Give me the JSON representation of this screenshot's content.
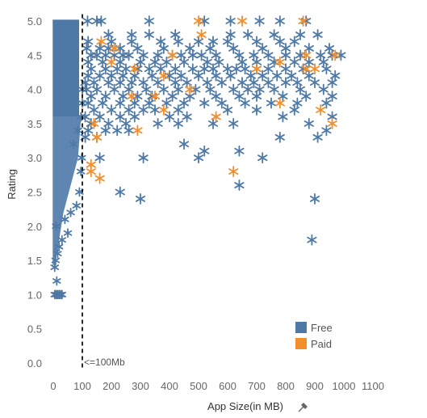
{
  "chart_data": {
    "type": "scatter",
    "xlabel": "App Size(in MB)",
    "ylabel": "Rating",
    "xlim": [
      -10,
      1150
    ],
    "ylim": [
      -0.1,
      5.1
    ],
    "xticks": [
      "0",
      "100",
      "200",
      "300",
      "400",
      "500",
      "600",
      "700",
      "800",
      "900",
      "1000",
      "1100"
    ],
    "yticks": [
      "0.0",
      "0.5",
      "1.0",
      "1.5",
      "2.0",
      "2.5",
      "3.0",
      "3.5",
      "4.0",
      "4.5",
      "5.0"
    ],
    "grid": false,
    "legend_position": "bottom-right",
    "reference_line": {
      "x": 100,
      "label": "<=100Mb"
    },
    "series": [
      {
        "name": "Free",
        "color": "#4e79a7",
        "marker": "asterisk",
        "points": [
          [
            118,
            5.0
          ],
          [
            150,
            5.0
          ],
          [
            165,
            5.0
          ],
          [
            330,
            5.0
          ],
          [
            520,
            5.0
          ],
          [
            610,
            5.0
          ],
          [
            710,
            5.0
          ],
          [
            780,
            5.0
          ],
          [
            870,
            5.0
          ],
          [
            190,
            4.8
          ],
          [
            270,
            4.8
          ],
          [
            330,
            4.8
          ],
          [
            420,
            4.8
          ],
          [
            610,
            4.8
          ],
          [
            670,
            4.8
          ],
          [
            760,
            4.8
          ],
          [
            850,
            4.8
          ],
          [
            910,
            4.8
          ],
          [
            120,
            4.7
          ],
          [
            200,
            4.7
          ],
          [
            270,
            4.7
          ],
          [
            370,
            4.7
          ],
          [
            430,
            4.7
          ],
          [
            500,
            4.7
          ],
          [
            550,
            4.7
          ],
          [
            600,
            4.7
          ],
          [
            700,
            4.7
          ],
          [
            780,
            4.7
          ],
          [
            830,
            4.7
          ],
          [
            115,
            4.6
          ],
          [
            160,
            4.6
          ],
          [
            190,
            4.6
          ],
          [
            230,
            4.6
          ],
          [
            290,
            4.6
          ],
          [
            380,
            4.6
          ],
          [
            470,
            4.6
          ],
          [
            540,
            4.6
          ],
          [
            620,
            4.6
          ],
          [
            720,
            4.6
          ],
          [
            800,
            4.6
          ],
          [
            880,
            4.6
          ],
          [
            950,
            4.6
          ],
          [
            130,
            4.5
          ],
          [
            150,
            4.5
          ],
          [
            180,
            4.5
          ],
          [
            210,
            4.5
          ],
          [
            240,
            4.5
          ],
          [
            260,
            4.5
          ],
          [
            310,
            4.5
          ],
          [
            360,
            4.5
          ],
          [
            410,
            4.5
          ],
          [
            440,
            4.5
          ],
          [
            480,
            4.5
          ],
          [
            510,
            4.5
          ],
          [
            560,
            4.5
          ],
          [
            640,
            4.5
          ],
          [
            690,
            4.5
          ],
          [
            740,
            4.5
          ],
          [
            800,
            4.5
          ],
          [
            850,
            4.5
          ],
          [
            920,
            4.5
          ],
          [
            960,
            4.5
          ],
          [
            990,
            4.5
          ],
          [
            120,
            4.4
          ],
          [
            170,
            4.4
          ],
          [
            230,
            4.4
          ],
          [
            300,
            4.4
          ],
          [
            350,
            4.4
          ],
          [
            390,
            4.4
          ],
          [
            450,
            4.4
          ],
          [
            530,
            4.4
          ],
          [
            570,
            4.4
          ],
          [
            650,
            4.4
          ],
          [
            700,
            4.4
          ],
          [
            760,
            4.4
          ],
          [
            830,
            4.4
          ],
          [
            880,
            4.4
          ],
          [
            930,
            4.4
          ],
          [
            130,
            4.3
          ],
          [
            180,
            4.3
          ],
          [
            220,
            4.3
          ],
          [
            250,
            4.3
          ],
          [
            290,
            4.3
          ],
          [
            330,
            4.3
          ],
          [
            370,
            4.3
          ],
          [
            420,
            4.3
          ],
          [
            480,
            4.3
          ],
          [
            520,
            4.3
          ],
          [
            550,
            4.3
          ],
          [
            600,
            4.3
          ],
          [
            630,
            4.3
          ],
          [
            660,
            4.3
          ],
          [
            700,
            4.3
          ],
          [
            740,
            4.3
          ],
          [
            800,
            4.3
          ],
          [
            860,
            4.3
          ],
          [
            940,
            4.3
          ],
          [
            120,
            4.2
          ],
          [
            160,
            4.2
          ],
          [
            200,
            4.2
          ],
          [
            240,
            4.2
          ],
          [
            280,
            4.2
          ],
          [
            340,
            4.2
          ],
          [
            400,
            4.2
          ],
          [
            440,
            4.2
          ],
          [
            500,
            4.2
          ],
          [
            560,
            4.2
          ],
          [
            610,
            4.2
          ],
          [
            680,
            4.2
          ],
          [
            720,
            4.2
          ],
          [
            770,
            4.2
          ],
          [
            820,
            4.2
          ],
          [
            880,
            4.2
          ],
          [
            970,
            4.2
          ],
          [
            110,
            4.1
          ],
          [
            140,
            4.1
          ],
          [
            190,
            4.1
          ],
          [
            230,
            4.1
          ],
          [
            270,
            4.1
          ],
          [
            310,
            4.1
          ],
          [
            360,
            4.1
          ],
          [
            420,
            4.1
          ],
          [
            460,
            4.1
          ],
          [
            530,
            4.1
          ],
          [
            580,
            4.1
          ],
          [
            650,
            4.1
          ],
          [
            690,
            4.1
          ],
          [
            740,
            4.1
          ],
          [
            800,
            4.1
          ],
          [
            840,
            4.1
          ],
          [
            900,
            4.1
          ],
          [
            960,
            4.1
          ],
          [
            115,
            4.0
          ],
          [
            150,
            4.0
          ],
          [
            210,
            4.0
          ],
          [
            260,
            4.0
          ],
          [
            320,
            4.0
          ],
          [
            380,
            4.0
          ],
          [
            430,
            4.0
          ],
          [
            490,
            4.0
          ],
          [
            540,
            4.0
          ],
          [
            620,
            4.0
          ],
          [
            670,
            4.0
          ],
          [
            710,
            4.0
          ],
          [
            760,
            4.0
          ],
          [
            850,
            4.0
          ],
          [
            930,
            4.0
          ],
          [
            130,
            3.9
          ],
          [
            180,
            3.9
          ],
          [
            240,
            3.9
          ],
          [
            290,
            3.9
          ],
          [
            340,
            3.9
          ],
          [
            410,
            3.9
          ],
          [
            470,
            3.9
          ],
          [
            560,
            3.9
          ],
          [
            640,
            3.9
          ],
          [
            700,
            3.9
          ],
          [
            790,
            3.9
          ],
          [
            870,
            3.9
          ],
          [
            960,
            3.9
          ],
          [
            120,
            3.8
          ],
          [
            170,
            3.8
          ],
          [
            230,
            3.8
          ],
          [
            280,
            3.8
          ],
          [
            330,
            3.8
          ],
          [
            390,
            3.8
          ],
          [
            450,
            3.8
          ],
          [
            520,
            3.8
          ],
          [
            580,
            3.8
          ],
          [
            660,
            3.8
          ],
          [
            750,
            3.8
          ],
          [
            840,
            3.8
          ],
          [
            940,
            3.8
          ],
          [
            140,
            3.7
          ],
          [
            200,
            3.7
          ],
          [
            260,
            3.7
          ],
          [
            310,
            3.7
          ],
          [
            350,
            3.7
          ],
          [
            430,
            3.7
          ],
          [
            600,
            3.7
          ],
          [
            700,
            3.7
          ],
          [
            830,
            3.7
          ],
          [
            110,
            3.6
          ],
          [
            160,
            3.6
          ],
          [
            230,
            3.6
          ],
          [
            280,
            3.6
          ],
          [
            400,
            3.6
          ],
          [
            460,
            3.6
          ],
          [
            790,
            3.6
          ],
          [
            960,
            3.6
          ],
          [
            130,
            3.5
          ],
          [
            190,
            3.5
          ],
          [
            250,
            3.5
          ],
          [
            360,
            3.5
          ],
          [
            430,
            3.5
          ],
          [
            550,
            3.5
          ],
          [
            620,
            3.5
          ],
          [
            880,
            3.5
          ],
          [
            120,
            3.4
          ],
          [
            180,
            3.4
          ],
          [
            220,
            3.4
          ],
          [
            260,
            3.4
          ],
          [
            940,
            3.4
          ],
          [
            110,
            3.3
          ],
          [
            150,
            3.3
          ],
          [
            780,
            3.3
          ],
          [
            910,
            3.3
          ],
          [
            450,
            3.2
          ],
          [
            520,
            3.1
          ],
          [
            640,
            3.1
          ],
          [
            500,
            3.0
          ],
          [
            720,
            3.0
          ],
          [
            310,
            3.0
          ],
          [
            160,
            3.0
          ],
          [
            230,
            2.5
          ],
          [
            640,
            2.6
          ],
          [
            300,
            2.4
          ],
          [
            900,
            2.4
          ],
          [
            890,
            1.8
          ]
        ]
      },
      {
        "name": "Paid",
        "color": "#f28e2b",
        "marker": "asterisk",
        "points": [
          [
            500,
            5.0
          ],
          [
            650,
            5.0
          ],
          [
            860,
            5.0
          ],
          [
            510,
            4.8
          ],
          [
            165,
            4.7
          ],
          [
            210,
            4.6
          ],
          [
            410,
            4.5
          ],
          [
            870,
            4.5
          ],
          [
            970,
            4.5
          ],
          [
            200,
            4.4
          ],
          [
            780,
            4.4
          ],
          [
            280,
            4.3
          ],
          [
            700,
            4.3
          ],
          [
            870,
            4.3
          ],
          [
            900,
            4.3
          ],
          [
            380,
            4.2
          ],
          [
            470,
            4.0
          ],
          [
            270,
            3.9
          ],
          [
            350,
            3.9
          ],
          [
            780,
            3.8
          ],
          [
            380,
            3.7
          ],
          [
            920,
            3.7
          ],
          [
            560,
            3.6
          ],
          [
            140,
            3.5
          ],
          [
            960,
            3.5
          ],
          [
            290,
            3.4
          ],
          [
            150,
            3.3
          ],
          [
            130,
            2.9
          ],
          [
            130,
            2.8
          ],
          [
            620,
            2.8
          ],
          [
            160,
            2.7
          ]
        ]
      }
    ],
    "dense_region": {
      "x_range": [
        0,
        100
      ],
      "rating_range": [
        1.0,
        5.0
      ],
      "color": "#4e79a7",
      "note_points": [
        [
          5,
          1.0
        ],
        [
          10,
          1.0
        ],
        [
          15,
          1.0
        ],
        [
          20,
          1.0
        ],
        [
          25,
          1.0
        ],
        [
          30,
          1.0
        ],
        [
          12,
          1.2
        ],
        [
          5,
          1.4
        ],
        [
          8,
          1.5
        ],
        [
          15,
          1.6
        ],
        [
          20,
          1.7
        ],
        [
          30,
          1.8
        ],
        [
          50,
          1.9
        ],
        [
          10,
          2.0
        ],
        [
          40,
          2.1
        ],
        [
          60,
          2.2
        ],
        [
          80,
          2.3
        ],
        [
          90,
          2.5
        ],
        [
          95,
          2.8
        ],
        [
          98,
          3.0
        ],
        [
          70,
          3.2
        ],
        [
          85,
          3.4
        ],
        [
          95,
          3.6
        ],
        [
          100,
          3.8
        ],
        [
          100,
          4.0
        ]
      ]
    }
  },
  "legend": {
    "items": [
      {
        "label": "Free",
        "color": "#4e79a7"
      },
      {
        "label": "Paid",
        "color": "#f28e2b"
      }
    ]
  },
  "axis_pin_icon": "pin-icon"
}
